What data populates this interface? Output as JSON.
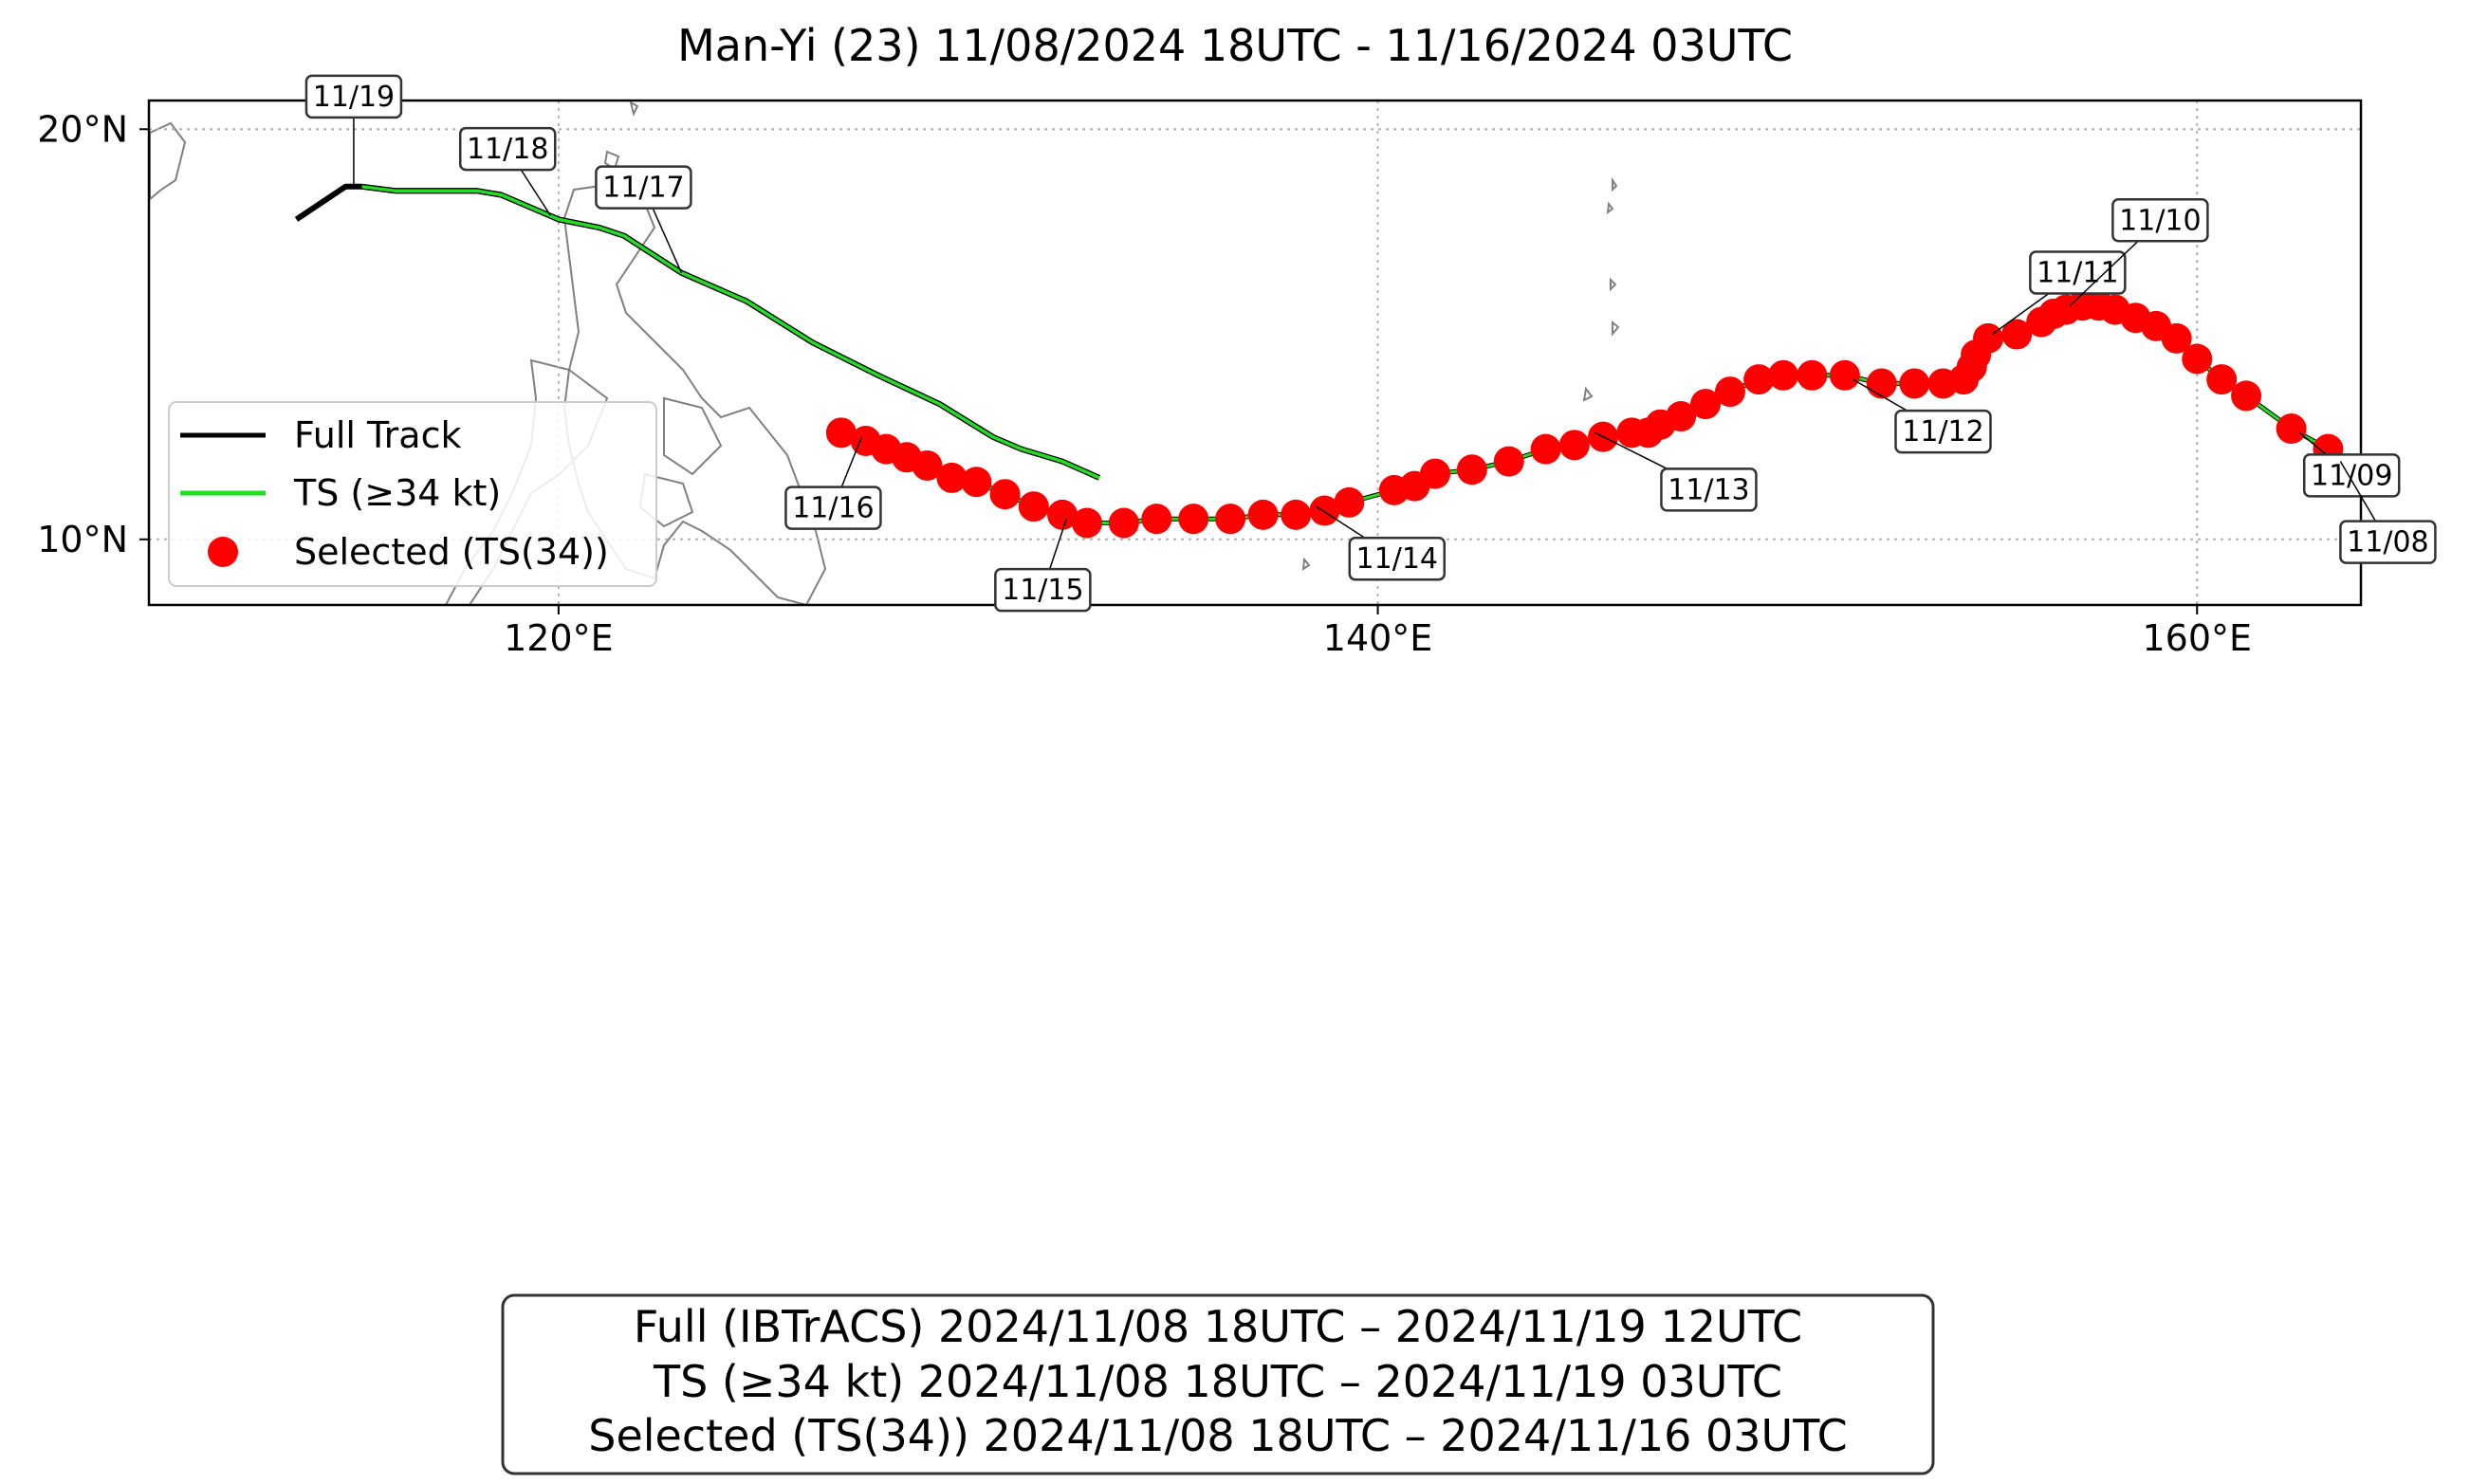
{
  "title": "Man-Yi (23)   11/08/2024 18UTC - 11/16/2024 03UTC",
  "map": {
    "lon_range": [
      110,
      164
    ],
    "lat_range": [
      8.4,
      20.7
    ],
    "lon_ticks": [
      {
        "value": 120,
        "label": "120°E"
      },
      {
        "value": 140,
        "label": "140°E"
      },
      {
        "value": 160,
        "label": "160°E"
      }
    ],
    "lat_ticks": [
      {
        "value": 10,
        "label": "10°N"
      },
      {
        "value": 20,
        "label": "20°N"
      }
    ],
    "gridlines": "dotted",
    "coastline_color": "#808080"
  },
  "colors": {
    "full_track": "#000000",
    "ts_track": "#22dd22",
    "selected": "#ff0000"
  },
  "legend": {
    "position": "lower-left",
    "items": [
      {
        "label": "Full Track",
        "symbol": "line",
        "color": "#000000"
      },
      {
        "label": "TS (≥34 kt)",
        "symbol": "line",
        "color": "#22dd22"
      },
      {
        "label": "Selected (TS(34))",
        "symbol": "dot",
        "color": "#ff0000"
      }
    ]
  },
  "chart_data": {
    "type": "scatter",
    "full_track": [
      [
        113.6,
        17.8
      ],
      [
        114.8,
        18.6
      ],
      [
        115.2,
        18.6
      ],
      [
        116,
        18.5
      ],
      [
        118,
        18.5
      ],
      [
        118.6,
        18.4
      ],
      [
        120,
        17.8
      ],
      [
        121,
        17.6
      ],
      [
        121.6,
        17.4
      ],
      [
        123,
        16.5
      ],
      [
        124.6,
        15.8
      ],
      [
        126.2,
        14.8
      ],
      [
        127.8,
        14.0
      ],
      [
        129.3,
        13.3
      ],
      [
        130.6,
        12.5
      ]
    ],
    "ts_track": [
      [
        115.2,
        18.6
      ],
      [
        116,
        18.5
      ],
      [
        118,
        18.5
      ],
      [
        118.6,
        18.4
      ],
      [
        120,
        17.8
      ],
      [
        121,
        17.6
      ],
      [
        121.6,
        17.4
      ],
      [
        123,
        16.5
      ],
      [
        124.6,
        15.8
      ],
      [
        126.2,
        14.8
      ],
      [
        127.8,
        14.0
      ],
      [
        129.3,
        13.3
      ],
      [
        130.6,
        12.5
      ],
      [
        131.3,
        12.2
      ],
      [
        132.3,
        11.9
      ],
      [
        133.2,
        11.5
      ]
    ],
    "selected_points": [
      [
        163.2,
        12.2
      ],
      [
        162.3,
        12.7
      ],
      [
        161.2,
        13.5
      ],
      [
        160.6,
        13.9
      ],
      [
        160.0,
        14.4
      ],
      [
        159.5,
        14.9
      ],
      [
        159.0,
        15.2
      ],
      [
        158.5,
        15.4
      ],
      [
        158.0,
        15.6
      ],
      [
        157.6,
        15.7
      ],
      [
        157.2,
        15.7
      ],
      [
        156.8,
        15.6
      ],
      [
        156.5,
        15.5
      ],
      [
        156.2,
        15.3
      ],
      [
        155.6,
        15.0
      ],
      [
        154.9,
        14.9
      ],
      [
        154.6,
        14.5
      ],
      [
        154.5,
        14.2
      ],
      [
        154.3,
        13.9
      ],
      [
        153.8,
        13.8
      ],
      [
        153.1,
        13.8
      ],
      [
        152.3,
        13.8
      ],
      [
        151.4,
        14.0
      ],
      [
        150.6,
        14.0
      ],
      [
        149.9,
        14.0
      ],
      [
        149.3,
        13.9
      ],
      [
        148.6,
        13.6
      ],
      [
        148.0,
        13.3
      ],
      [
        147.4,
        13.0
      ],
      [
        146.9,
        12.8
      ],
      [
        146.6,
        12.6
      ],
      [
        146.2,
        12.6
      ],
      [
        145.5,
        12.5
      ],
      [
        144.8,
        12.3
      ],
      [
        144.1,
        12.2
      ],
      [
        143.2,
        11.9
      ],
      [
        142.3,
        11.7
      ],
      [
        141.4,
        11.6
      ],
      [
        140.9,
        11.3
      ],
      [
        140.4,
        11.2
      ],
      [
        139.3,
        10.9
      ],
      [
        138.7,
        10.7
      ],
      [
        138.0,
        10.6
      ],
      [
        137.2,
        10.6
      ],
      [
        136.4,
        10.5
      ],
      [
        135.5,
        10.5
      ],
      [
        134.6,
        10.5
      ],
      [
        133.8,
        10.4
      ],
      [
        132.9,
        10.4
      ],
      [
        132.3,
        10.6
      ],
      [
        131.6,
        10.8
      ],
      [
        130.9,
        11.1
      ],
      [
        130.2,
        11.4
      ],
      [
        129.6,
        11.5
      ],
      [
        129.0,
        11.8
      ],
      [
        128.5,
        12.0
      ],
      [
        128.0,
        12.2
      ],
      [
        127.5,
        12.4
      ],
      [
        126.9,
        12.6
      ]
    ],
    "date_labels": [
      {
        "text": "11/19",
        "lon": 115.0,
        "lat": 18.6
      },
      {
        "text": "11/18",
        "lon": 119.8,
        "lat": 17.9
      },
      {
        "text": "11/17",
        "lon": 123.0,
        "lat": 16.5
      },
      {
        "text": "11/16",
        "lon": 127.4,
        "lat": 12.5
      },
      {
        "text": "11/15",
        "lon": 132.4,
        "lat": 10.5
      },
      {
        "text": "11/14",
        "lon": 138.5,
        "lat": 10.8
      },
      {
        "text": "11/13",
        "lon": 145.3,
        "lat": 12.6
      },
      {
        "text": "11/12",
        "lon": 151.6,
        "lat": 13.9
      },
      {
        "text": "11/11",
        "lon": 155.0,
        "lat": 15.0
      },
      {
        "text": "11/10",
        "lon": 156.9,
        "lat": 15.7
      },
      {
        "text": "11/09",
        "lon": 162.5,
        "lat": 12.6
      },
      {
        "text": "11/08",
        "lon": 163.5,
        "lat": 11.9
      }
    ]
  },
  "info_box": {
    "lines": [
      "Full (IBTrACS)   2024/11/08 18UTC – 2024/11/19 12UTC",
      "TS (≥34 kt)   2024/11/08 18UTC – 2024/11/19 03UTC",
      "Selected (TS(34))   2024/11/08 18UTC – 2024/11/16 03UTC"
    ]
  }
}
